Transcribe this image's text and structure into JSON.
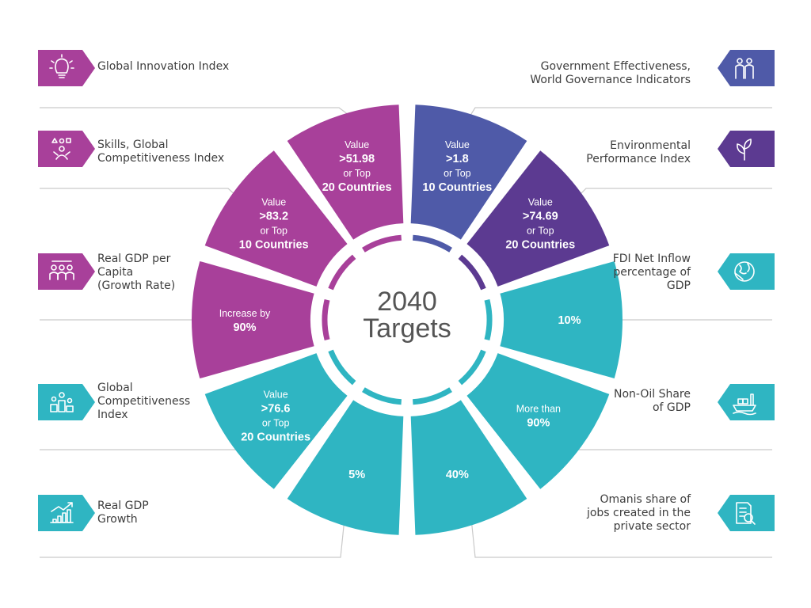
{
  "center": {
    "line1": "2040",
    "line2": "Targets"
  },
  "colors": {
    "purple": "#a8409a",
    "indigo": "#4f5aa8",
    "violet": "#5c3a91",
    "teal": "#2fb5c2",
    "line": "#c9c9c9",
    "text": "#3e3e3e"
  },
  "segments": [
    {
      "id": "seg-gov-effectiveness",
      "color": "#4f5aa8",
      "lines": [
        "Value",
        ">1.8",
        "or Top",
        "10 Countries"
      ]
    },
    {
      "id": "seg-environmental",
      "color": "#5c3a91",
      "lines": [
        "Value",
        ">74.69",
        "or Top",
        "20 Countries"
      ]
    },
    {
      "id": "seg-fdi",
      "color": "#2fb5c2",
      "lines": [
        "10%"
      ]
    },
    {
      "id": "seg-non-oil",
      "color": "#2fb5c2",
      "lines": [
        "More than",
        "90%"
      ]
    },
    {
      "id": "seg-omanis-share",
      "color": "#2fb5c2",
      "lines": [
        "40%"
      ]
    },
    {
      "id": "seg-real-gdp-growth",
      "color": "#2fb5c2",
      "lines": [
        "5%"
      ]
    },
    {
      "id": "seg-global-competitiveness",
      "color": "#2fb5c2",
      "lines": [
        "Value",
        ">76.6",
        "or Top",
        "20 Countries"
      ]
    },
    {
      "id": "seg-real-gdp-per-capita",
      "color": "#a8409a",
      "lines": [
        "Increase by",
        "90%"
      ]
    },
    {
      "id": "seg-skills",
      "color": "#a8409a",
      "lines": [
        "Value",
        ">83.2",
        "or Top",
        "10 Countries"
      ]
    },
    {
      "id": "seg-global-innovation",
      "color": "#a8409a",
      "lines": [
        "Value",
        ">51.98",
        "or Top",
        "20 Countries"
      ]
    }
  ],
  "indicators_left": [
    {
      "label": "Global Innovation Index",
      "icon": "lightbulb-icon",
      "color": "#a8409a"
    },
    {
      "label": "Skills, Global\nCompetitiveness Index",
      "icon": "skills-person-icon",
      "color": "#a8409a"
    },
    {
      "label": "Real GDP per\nCapita\n(Growth Rate)",
      "icon": "people-group-icon",
      "color": "#a8409a"
    },
    {
      "label": "Global\nCompetitiveness\nIndex",
      "icon": "podium-icon",
      "color": "#2fb5c2"
    },
    {
      "label": "Real GDP\nGrowth",
      "icon": "growth-chart-icon",
      "color": "#2fb5c2"
    }
  ],
  "indicators_right": [
    {
      "label": "Government Effectiveness,\nWorld Governance Indicators",
      "icon": "officials-icon",
      "color": "#4f5aa8"
    },
    {
      "label": "Environmental\nPerformance Index",
      "icon": "plant-icon",
      "color": "#5c3a91"
    },
    {
      "label": "FDI Net Inflow\npercentage of\nGDP",
      "icon": "globe-icon",
      "color": "#2fb5c2"
    },
    {
      "label": "Non-Oil Share\nof GDP",
      "icon": "cargo-ship-icon",
      "color": "#2fb5c2"
    },
    {
      "label": "Omanis share of\njobs created in the\nprivate sector",
      "icon": "document-search-icon",
      "color": "#2fb5c2"
    }
  ]
}
